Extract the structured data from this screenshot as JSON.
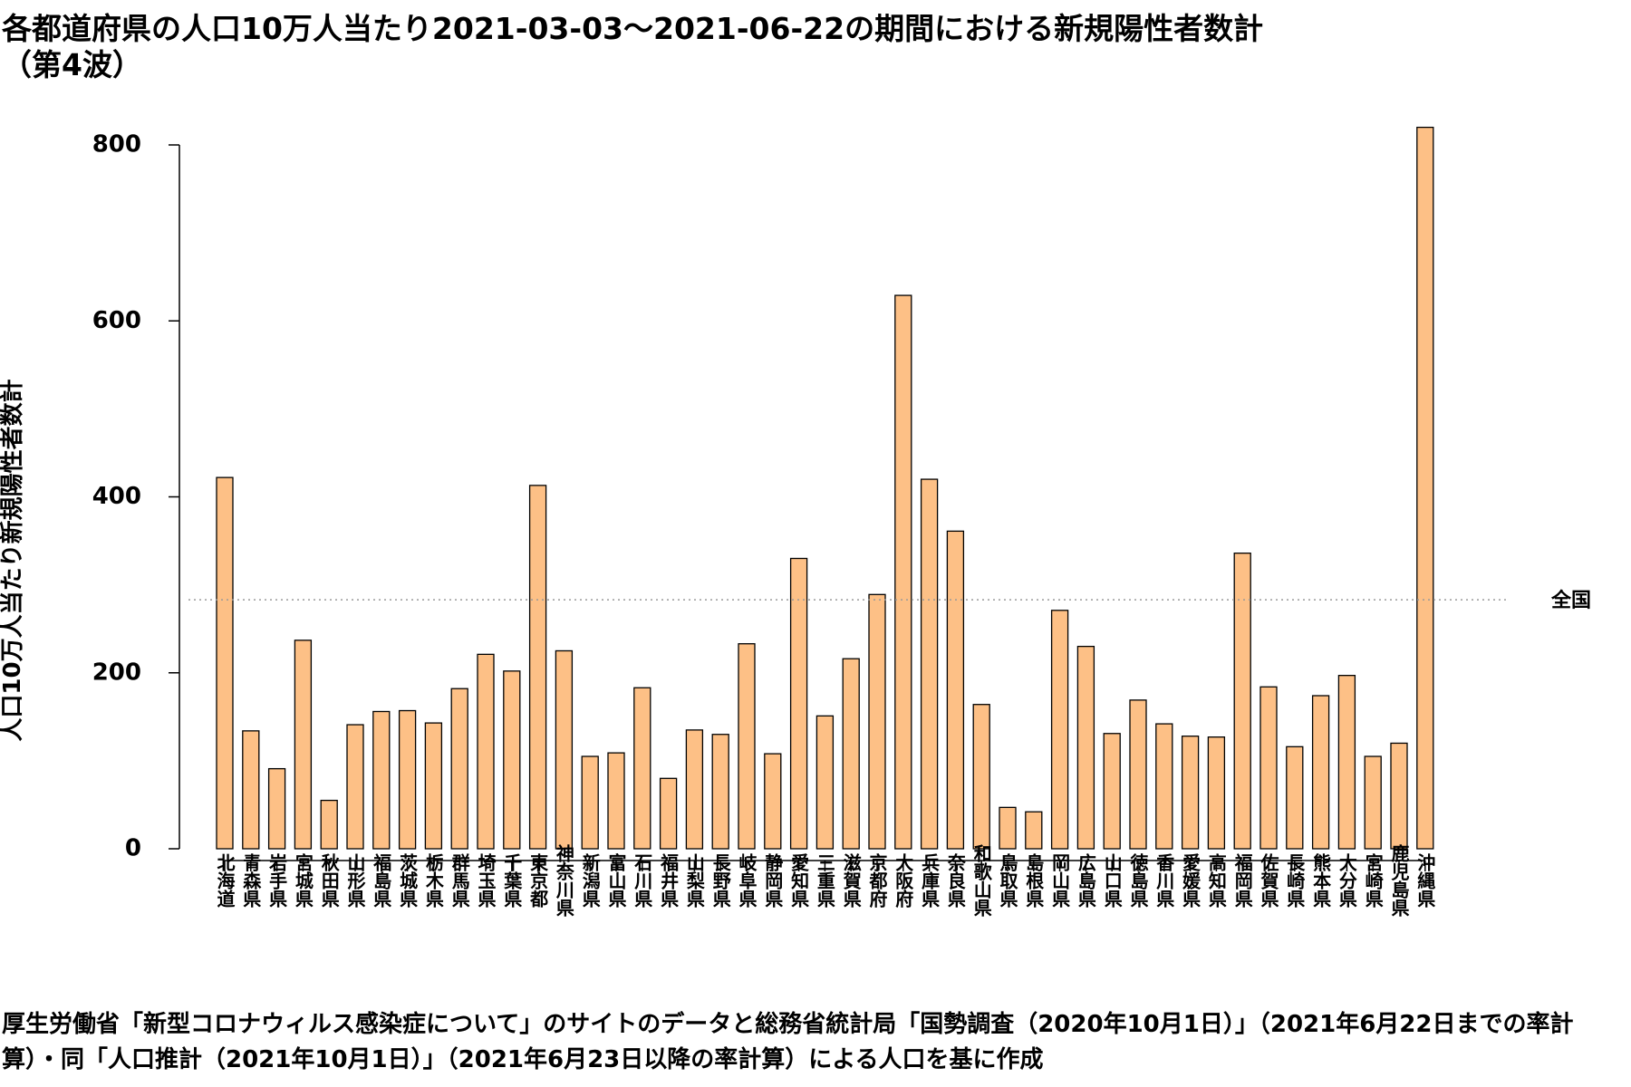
{
  "title": "各都道府県の人口10万人当たり2021-03-03〜2021-06-22の期間における新規陽性者数計\n（第4波）",
  "caption": "厚生労働省「新型コロナウィルス感染症について」のサイトのデータと総務省統計局「国勢調査（2020年10月1日）」（2021年6月22日までの率計算）・同「人口推計（2021年10月1日）」（2021年6月23日以降の率計算）による人口を基に作成",
  "colors": {
    "bar_fill": "#FDC086",
    "bar_stroke": "#000000",
    "reference_line": "#999999"
  },
  "chart_data": {
    "type": "bar",
    "title": "各都道府県の人口10万人当たり2021-03-03〜2021-06-22の期間における新規陽性者数計（第4波）",
    "xlabel": "",
    "ylabel": "人口10万人当たり新規陽性者数計",
    "ylim": [
      0,
      820
    ],
    "yticks": [
      0,
      200,
      400,
      600,
      800
    ],
    "grid": false,
    "categories": [
      "北海道",
      "青森県",
      "岩手県",
      "宮城県",
      "秋田県",
      "山形県",
      "福島県",
      "茨城県",
      "栃木県",
      "群馬県",
      "埼玉県",
      "千葉県",
      "東京都",
      "神奈川県",
      "新潟県",
      "富山県",
      "石川県",
      "福井県",
      "山梨県",
      "長野県",
      "岐阜県",
      "静岡県",
      "愛知県",
      "三重県",
      "滋賀県",
      "京都府",
      "大阪府",
      "兵庫県",
      "奈良県",
      "和歌山県",
      "鳥取県",
      "島根県",
      "岡山県",
      "広島県",
      "山口県",
      "徳島県",
      "香川県",
      "愛媛県",
      "高知県",
      "福岡県",
      "佐賀県",
      "長崎県",
      "熊本県",
      "大分県",
      "宮崎県",
      "鹿児島県",
      "沖縄県"
    ],
    "values": [
      422,
      134,
      91,
      237,
      55,
      141,
      156,
      157,
      143,
      182,
      221,
      202,
      413,
      225,
      105,
      109,
      183,
      80,
      135,
      130,
      233,
      108,
      330,
      151,
      216,
      289,
      629,
      420,
      361,
      164,
      47,
      42,
      271,
      230,
      131,
      169,
      142,
      128,
      127,
      336,
      184,
      116,
      174,
      197,
      105,
      120,
      820
    ],
    "reference_line": {
      "label": "全国",
      "value": 283,
      "style": "dotted"
    }
  }
}
